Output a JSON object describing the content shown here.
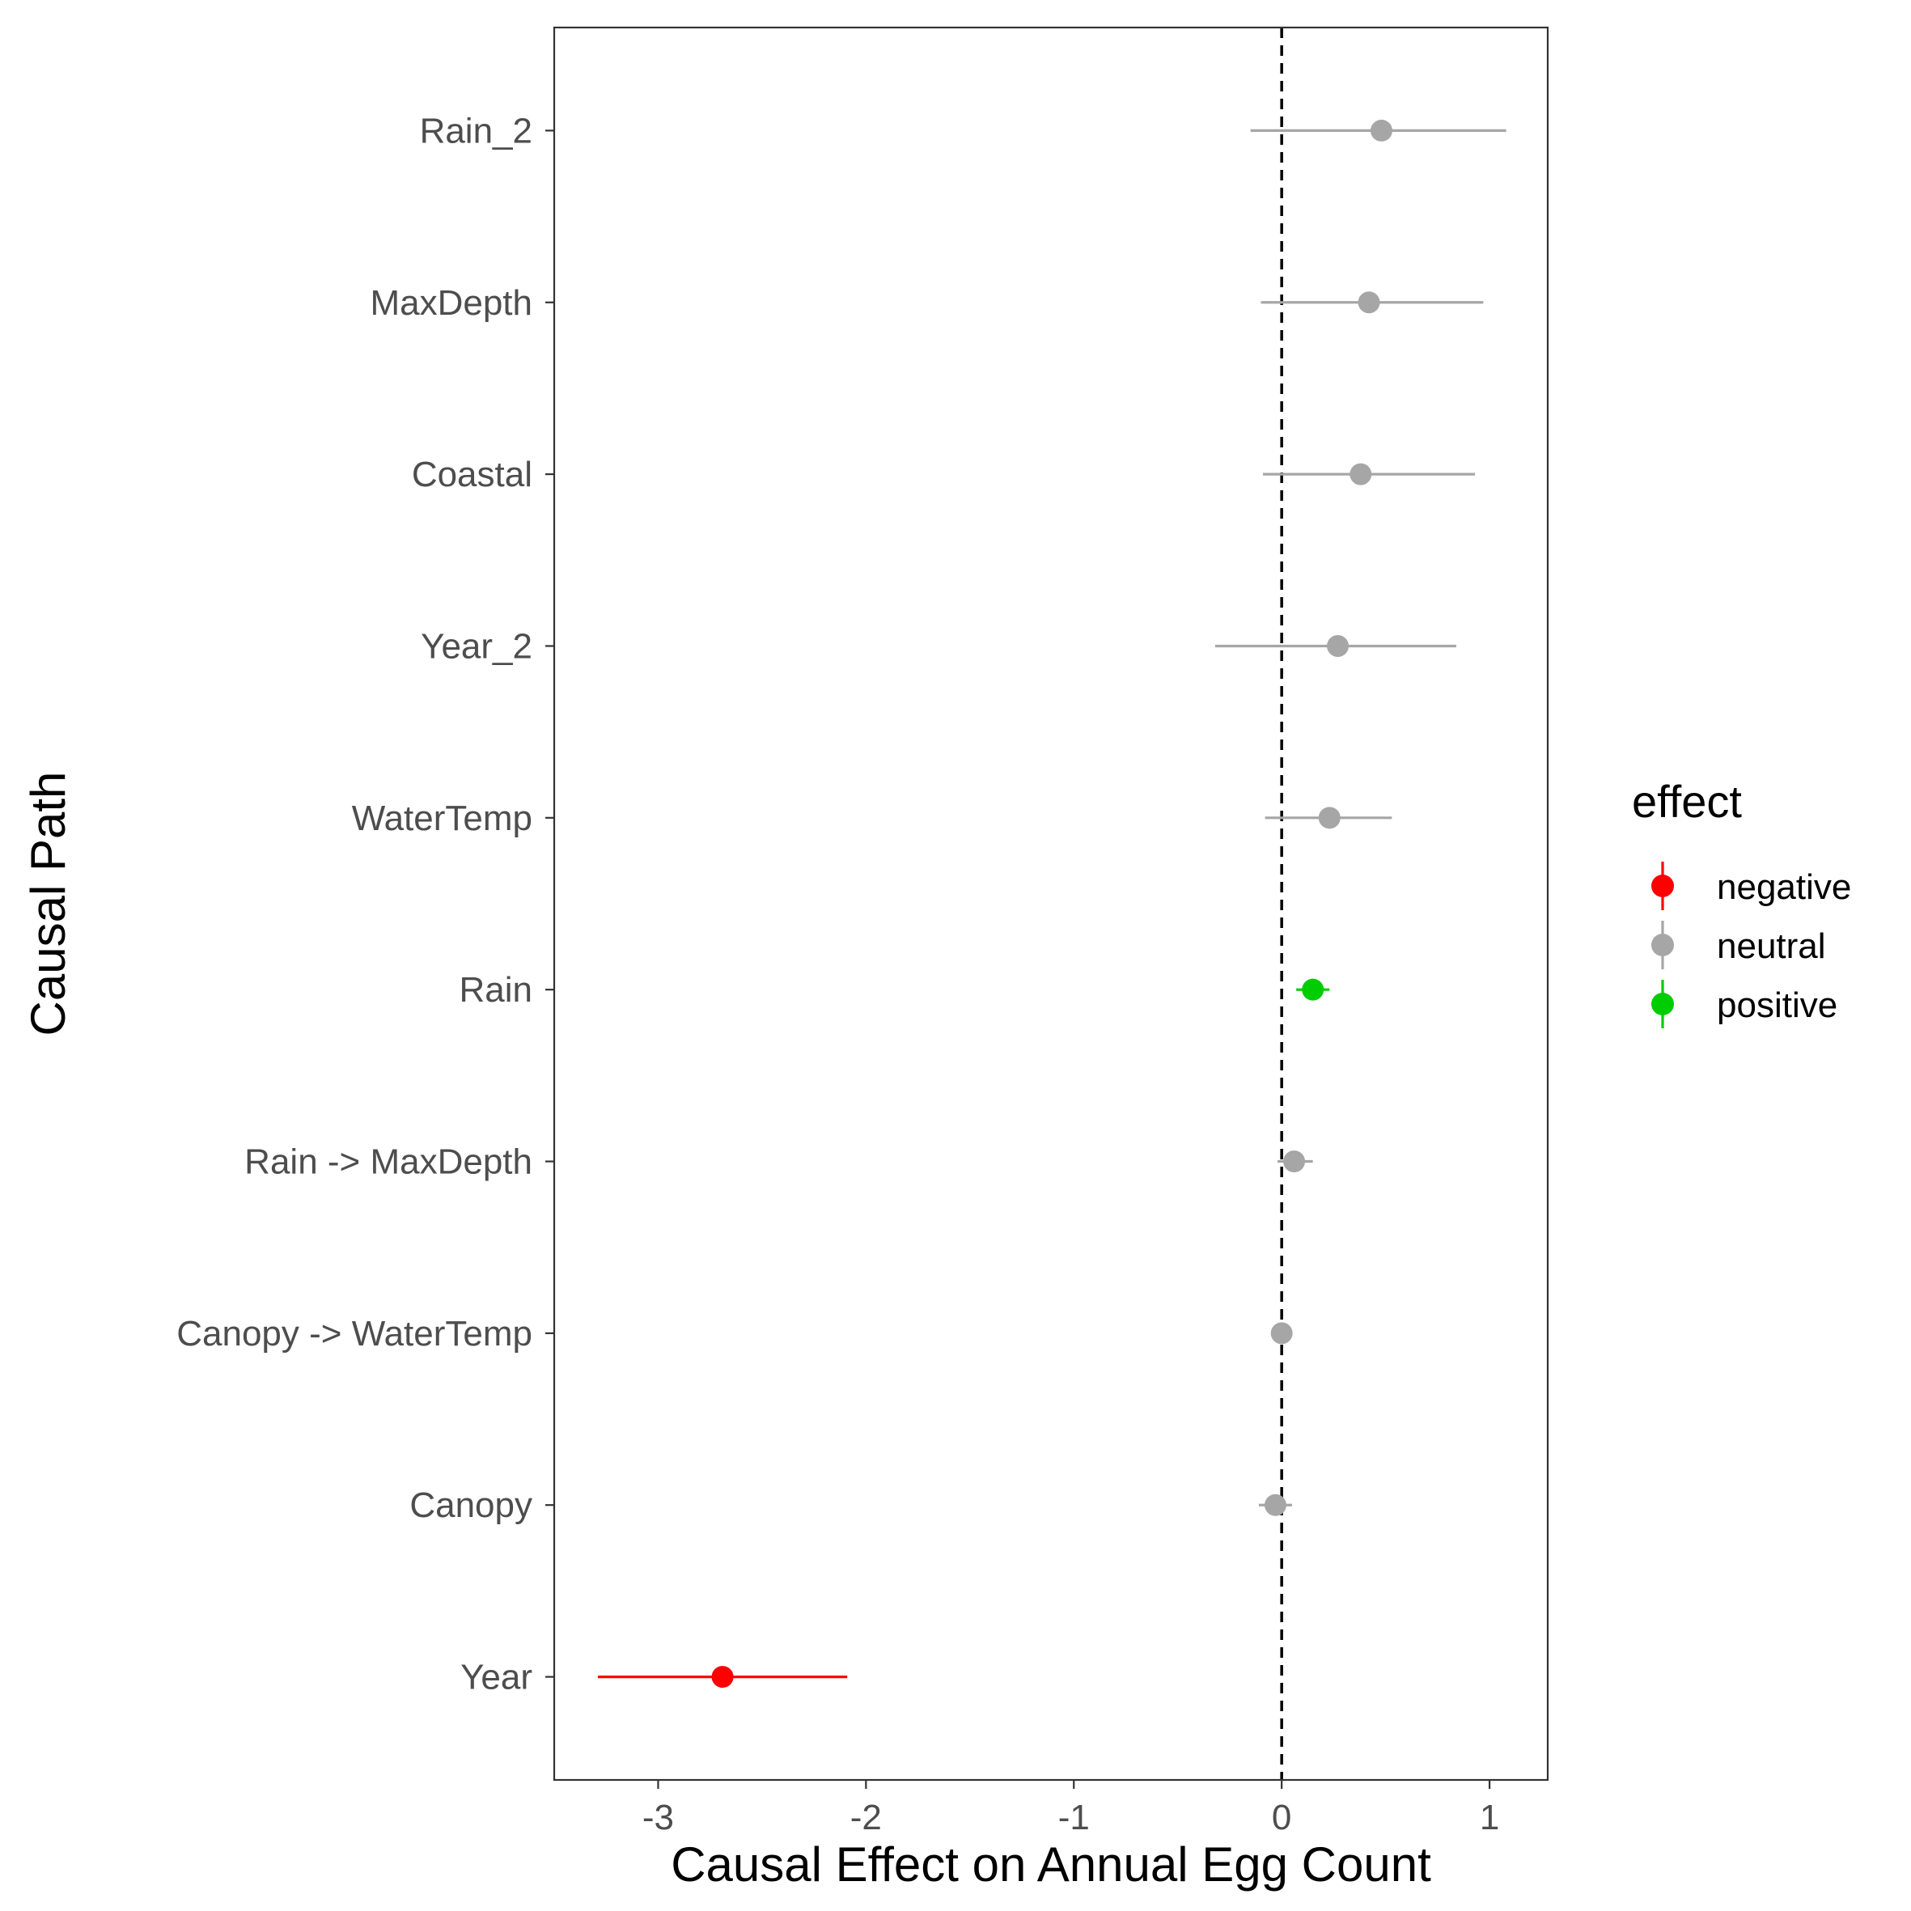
{
  "chart_data": {
    "type": "scatter",
    "subtype": "forest-plot",
    "xlabel": "Causal Effect on Annual Egg Count",
    "ylabel": "Causal Path",
    "xlim": [
      -3.5,
      1.28
    ],
    "x_ticks": [
      "-3",
      "-2",
      "-1",
      "0",
      "1"
    ],
    "reference_line": {
      "x": 0,
      "style": "dashed",
      "color": "#000000"
    },
    "grid": false,
    "legend": {
      "title": "effect",
      "placement": "right",
      "entries": [
        {
          "label": "negative",
          "color": "#ff0000"
        },
        {
          "label": "neutral",
          "color": "#a6a6a6"
        },
        {
          "label": "positive",
          "color": "#00cd00"
        }
      ]
    },
    "rows": [
      {
        "label": "Rain_2",
        "estimate": 0.48,
        "lower": -0.15,
        "upper": 1.08,
        "effect": "neutral"
      },
      {
        "label": "MaxDepth",
        "estimate": 0.42,
        "lower": -0.1,
        "upper": 0.97,
        "effect": "neutral"
      },
      {
        "label": "Coastal",
        "estimate": 0.38,
        "lower": -0.09,
        "upper": 0.93,
        "effect": "neutral"
      },
      {
        "label": "Year_2",
        "estimate": 0.27,
        "lower": -0.32,
        "upper": 0.84,
        "effect": "neutral"
      },
      {
        "label": "WaterTemp",
        "estimate": 0.23,
        "lower": -0.08,
        "upper": 0.53,
        "effect": "neutral"
      },
      {
        "label": "Rain",
        "estimate": 0.15,
        "lower": 0.07,
        "upper": 0.23,
        "effect": "positive"
      },
      {
        "label": "Rain -> MaxDepth",
        "estimate": 0.06,
        "lower": -0.02,
        "upper": 0.15,
        "effect": "neutral"
      },
      {
        "label": "Canopy -> WaterTemp",
        "estimate": 0.0,
        "lower": -0.03,
        "upper": 0.03,
        "effect": "neutral"
      },
      {
        "label": "Canopy",
        "estimate": -0.03,
        "lower": -0.11,
        "upper": 0.05,
        "effect": "neutral"
      },
      {
        "label": "Year",
        "estimate": -2.69,
        "lower": -3.29,
        "upper": -2.09,
        "effect": "negative"
      }
    ]
  }
}
